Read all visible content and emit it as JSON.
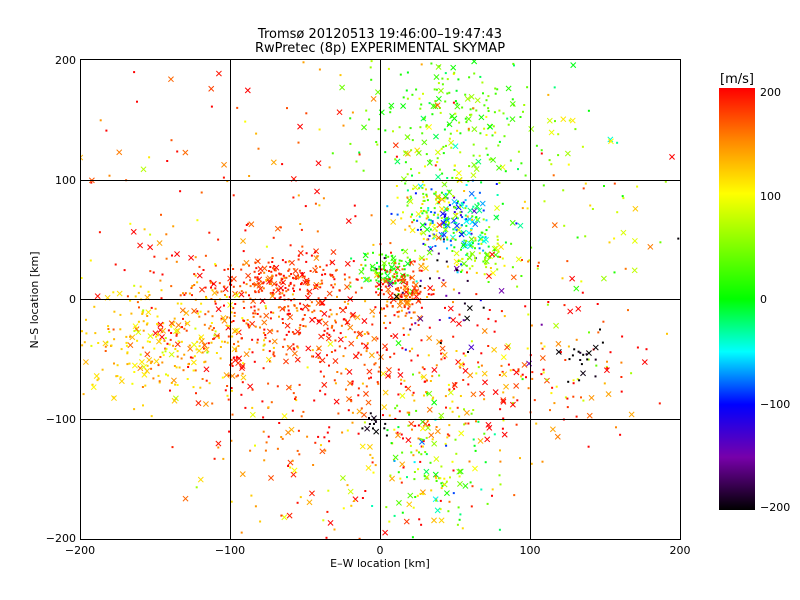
{
  "chart_data": {
    "type": "scatter",
    "title": "Tromsø 20120513 19:46:00–19:47:43",
    "subtitle": "RwPretec (8p) EXPERIMENTAL SKYMAP",
    "xlabel": "E–W location [km]",
    "ylabel": "N–S location [km]",
    "xlim": [
      -200,
      200
    ],
    "ylim": [
      -200,
      200
    ],
    "xticks": [
      "−200",
      "−100",
      "0",
      "100",
      "200"
    ],
    "yticks": [
      "−200",
      "−100",
      "0",
      "100",
      "200"
    ],
    "grid": true,
    "colorbar": {
      "label": "[m/s]",
      "range": [
        -200,
        200
      ],
      "ticks": [
        "200",
        "100",
        "0",
        "−100",
        "−200"
      ],
      "placement": "right"
    },
    "clusters": [
      {
        "cx": -55,
        "cy": -20,
        "sx": 50,
        "sy": 35,
        "n": 520,
        "v": 180,
        "vs": 25
      },
      {
        "cx": -70,
        "cy": 15,
        "sx": 25,
        "sy": 10,
        "n": 160,
        "v": 175,
        "vs": 20
      },
      {
        "cx": -150,
        "cy": -35,
        "sx": 35,
        "sy": 25,
        "n": 260,
        "v": 120,
        "vs": 20
      },
      {
        "cx": 45,
        "cy": 155,
        "sx": 30,
        "sy": 30,
        "n": 210,
        "v": 35,
        "vs": 30
      },
      {
        "cx": 50,
        "cy": 65,
        "sx": 15,
        "sy": 15,
        "n": 150,
        "v": -60,
        "vs": 35
      },
      {
        "cx": 35,
        "cy": 75,
        "sx": 12,
        "sy": 20,
        "n": 120,
        "v": 80,
        "vs": 40
      },
      {
        "cx": 5,
        "cy": 25,
        "sx": 8,
        "sy": 8,
        "n": 90,
        "v": 20,
        "vs": 25
      },
      {
        "cx": 15,
        "cy": 5,
        "sx": 10,
        "sy": 10,
        "n": 110,
        "v": 175,
        "vs": 25
      },
      {
        "cx": 65,
        "cy": 40,
        "sx": 15,
        "sy": 12,
        "n": 80,
        "v": 60,
        "vs": 40
      },
      {
        "cx": 35,
        "cy": -140,
        "sx": 20,
        "sy": 30,
        "n": 140,
        "v": 60,
        "vs": 60
      },
      {
        "cx": 45,
        "cy": -80,
        "sx": 35,
        "sy": 30,
        "n": 150,
        "v": 160,
        "vs": 60
      },
      {
        "cx": -40,
        "cy": -130,
        "sx": 45,
        "sy": 30,
        "n": 110,
        "v": 150,
        "vs": 40
      },
      {
        "cx": 120,
        "cy": -55,
        "sx": 30,
        "sy": 30,
        "n": 90,
        "v": 170,
        "vs": 60
      },
      {
        "cx": 135,
        "cy": -45,
        "sx": 8,
        "sy": 12,
        "n": 20,
        "v": -195,
        "vs": 5
      },
      {
        "cx": 120,
        "cy": 80,
        "sx": 45,
        "sy": 50,
        "n": 110,
        "v": 90,
        "vs": 60
      },
      {
        "cx": -100,
        "cy": 100,
        "sx": 80,
        "sy": 80,
        "n": 160,
        "v": 170,
        "vs": 40
      },
      {
        "cx": -5,
        "cy": -105,
        "sx": 4,
        "sy": 6,
        "n": 14,
        "v": -200,
        "vs": 5
      },
      {
        "cx": 45,
        "cy": 0,
        "sx": 25,
        "sy": 30,
        "n": 40,
        "v": -160,
        "vs": 40
      }
    ]
  }
}
